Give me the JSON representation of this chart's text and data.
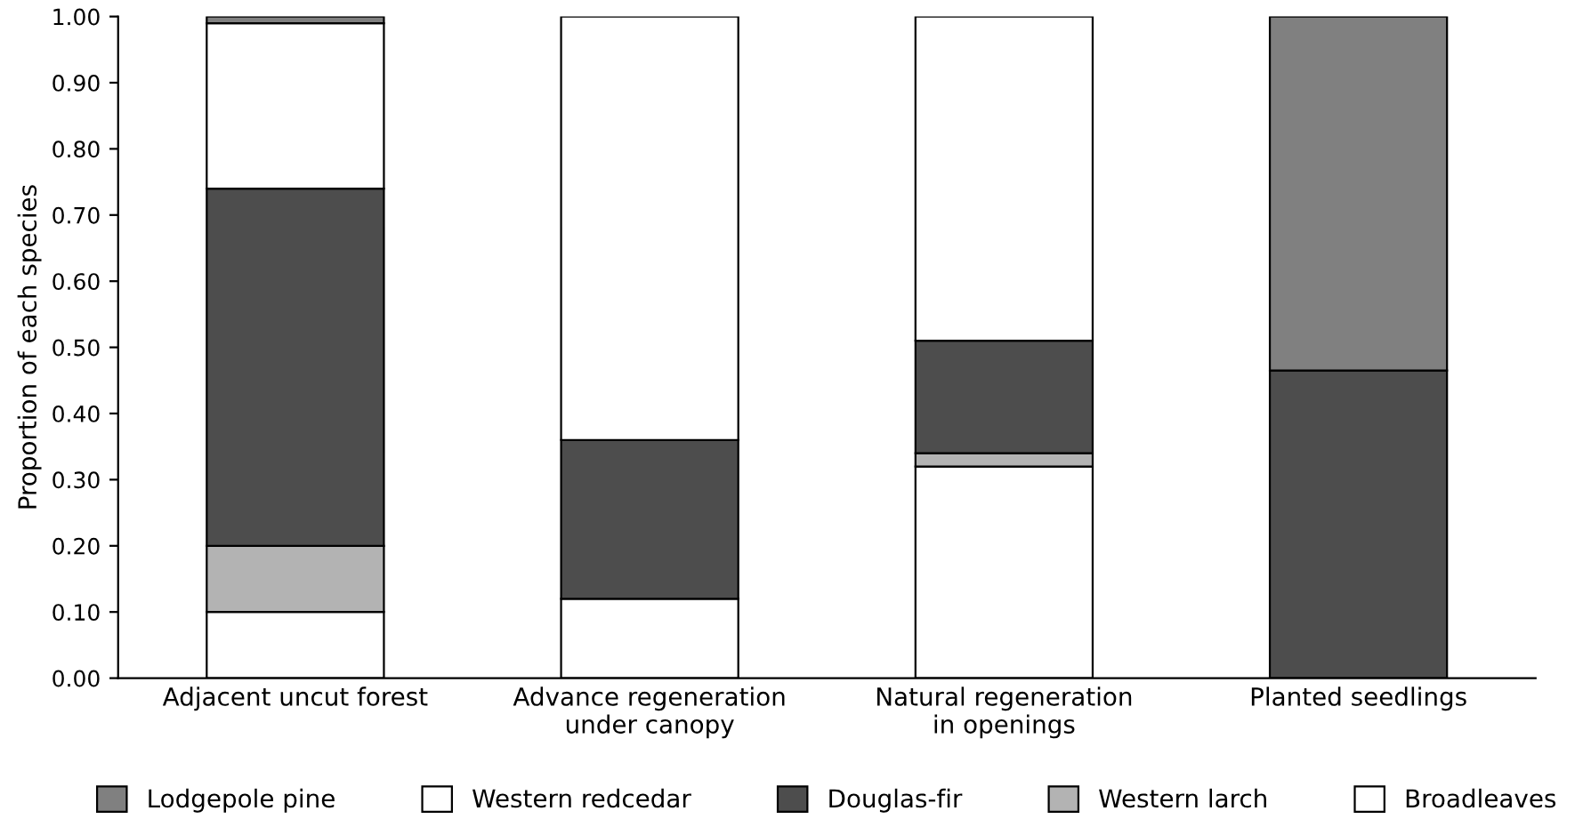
{
  "chart_data": {
    "type": "bar",
    "stacked": true,
    "ylabel": "Proportion of each species",
    "categories": [
      "Adjacent uncut forest",
      "Advance regeneration\nunder canopy",
      "Natural regeneration\nin openings",
      "Planted seedlings"
    ],
    "series": [
      {
        "name": "Broadleaves",
        "color": "#ffffff",
        "values": [
          0.1,
          0.12,
          0.32,
          null
        ]
      },
      {
        "name": "Western larch",
        "color": "#b3b3b3",
        "values": [
          0.1,
          null,
          0.02,
          null
        ]
      },
      {
        "name": "Douglas-fir",
        "color": "#4d4d4d",
        "values": [
          0.54,
          0.24,
          0.17,
          0.465
        ]
      },
      {
        "name": "Western redcedar",
        "color": "#ffffff",
        "values": [
          0.25,
          0.64,
          0.49,
          null
        ]
      },
      {
        "name": "Lodgepole pine",
        "color": "#808080",
        "values": [
          0.01,
          null,
          null,
          0.535
        ]
      }
    ],
    "ylim": [
      0,
      1
    ],
    "yticks": [
      {
        "value": 0,
        "label": "0.00"
      },
      {
        "value": 0.1,
        "label": "0.10"
      },
      {
        "value": 0.2,
        "label": "0.20"
      },
      {
        "value": 0.3,
        "label": "0.30"
      },
      {
        "value": 0.4,
        "label": "0.40"
      },
      {
        "value": 0.5,
        "label": "0.50"
      },
      {
        "value": 0.6,
        "label": "0.60"
      },
      {
        "value": 0.7,
        "label": "0.70"
      },
      {
        "value": 0.8,
        "label": "0.80"
      },
      {
        "value": 0.9,
        "label": "0.90"
      },
      {
        "value": 1,
        "label": "1.00"
      }
    ],
    "grid": false,
    "legend": "bottom"
  }
}
